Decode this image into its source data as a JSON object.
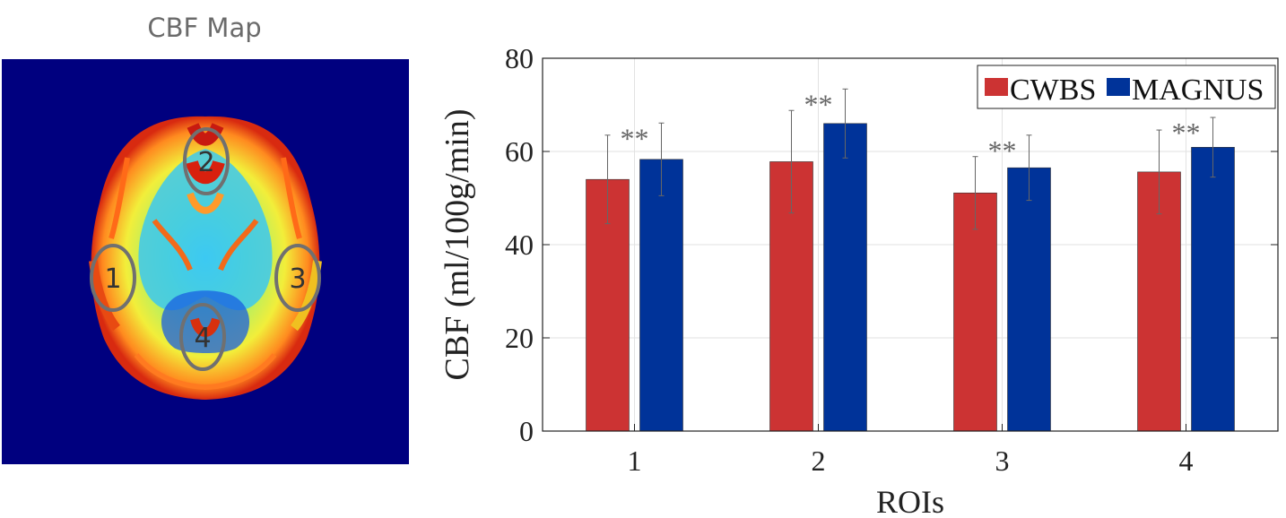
{
  "map_panel": {
    "title": "CBF Map",
    "roi_labels": [
      "1",
      "2",
      "3",
      "4"
    ],
    "background_color": "#00007f",
    "roi_outline_color": "#707070"
  },
  "chart_data": {
    "type": "bar",
    "xlabel": "ROIs",
    "ylabel": "CBF (ml/100g/min)",
    "categories": [
      "1",
      "2",
      "3",
      "4"
    ],
    "ylim": [
      0,
      80
    ],
    "yticks": [
      0,
      20,
      40,
      60,
      80
    ],
    "grid": true,
    "legend_position": "top-right",
    "series": [
      {
        "name": "CWBS",
        "color": "#cc3333",
        "values": [
          54.0,
          57.8,
          51.1,
          55.6
        ],
        "errors": [
          9.5,
          11.0,
          7.8,
          9.0
        ]
      },
      {
        "name": "MAGNUS",
        "color": "#003399",
        "values": [
          58.3,
          66.0,
          56.5,
          60.9
        ],
        "errors": [
          7.8,
          7.4,
          7.0,
          6.4
        ]
      }
    ],
    "annotations": [
      {
        "category": "1",
        "text": "**"
      },
      {
        "category": "2",
        "text": "**"
      },
      {
        "category": "3",
        "text": "**"
      },
      {
        "category": "4",
        "text": "**"
      }
    ]
  }
}
